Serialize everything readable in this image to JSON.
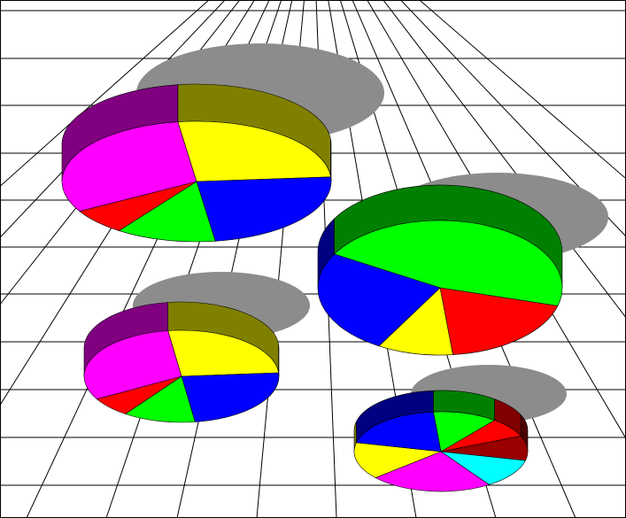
{
  "colors": {
    "yellow": "#ffff00",
    "blue": "#0000ff",
    "green": "#00ff00",
    "red": "#ff0000",
    "magenta": "#ff00ff",
    "cyan": "#00ffff",
    "darkred": "#990000",
    "shadow": "#8c8c8c",
    "grid": "#000000"
  },
  "chart_data": [
    {
      "type": "pie",
      "title": "",
      "slices": [
        {
          "color": "yellow",
          "value": 26
        },
        {
          "color": "blue",
          "value": 24
        },
        {
          "color": "green",
          "value": 12
        },
        {
          "color": "red",
          "value": 7
        },
        {
          "color": "magenta",
          "value": 31
        }
      ]
    },
    {
      "type": "pie",
      "title": "",
      "slices": [
        {
          "color": "green",
          "value": 46
        },
        {
          "color": "red",
          "value": 19
        },
        {
          "color": "yellow",
          "value": 10
        },
        {
          "color": "blue",
          "value": 25
        }
      ]
    },
    {
      "type": "pie",
      "title": "",
      "slices": [
        {
          "color": "yellow",
          "value": 26
        },
        {
          "color": "blue",
          "value": 24
        },
        {
          "color": "green",
          "value": 12
        },
        {
          "color": "red",
          "value": 7
        },
        {
          "color": "magenta",
          "value": 31
        }
      ]
    },
    {
      "type": "pie",
      "title": "",
      "slices": [
        {
          "color": "green",
          "value": 12
        },
        {
          "color": "red",
          "value": 8
        },
        {
          "color": "darkred",
          "value": 10
        },
        {
          "color": "cyan",
          "value": 12
        },
        {
          "color": "magenta",
          "value": 23
        },
        {
          "color": "yellow",
          "value": 15
        },
        {
          "color": "blue",
          "value": 20
        }
      ]
    }
  ]
}
